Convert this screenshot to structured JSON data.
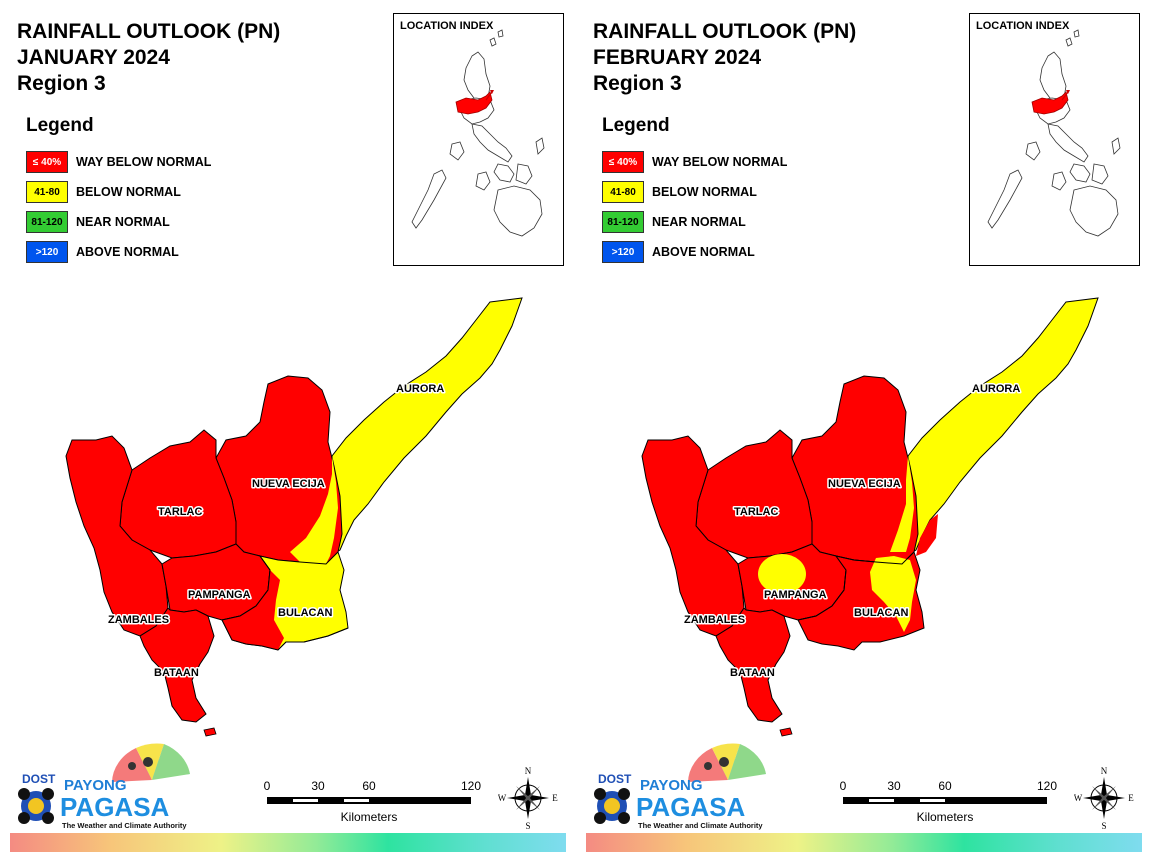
{
  "colors": {
    "way_below": "#ff0000",
    "below": "#ffff00",
    "near": "#33cc33",
    "above": "#0055ee"
  },
  "legend": {
    "title": "Legend",
    "items": [
      {
        "swatch": "≤ 40%",
        "label": "WAY BELOW NORMAL",
        "color": "#ff0000",
        "text_color": "#ffffff"
      },
      {
        "swatch": "41-80",
        "label": "BELOW NORMAL",
        "color": "#ffff00",
        "text_color": "#000000"
      },
      {
        "swatch": "81-120",
        "label": "NEAR NORMAL",
        "color": "#33cc33",
        "text_color": "#000000"
      },
      {
        "swatch": ">120",
        "label": "ABOVE NORMAL",
        "color": "#0055ee",
        "text_color": "#ffffff"
      }
    ]
  },
  "location_index_title": "LOCATION INDEX",
  "logo": {
    "dost": "DOST",
    "payong": "PAYONG",
    "pagasa": "PAGASA",
    "tagline": "The Weather and Climate Authority"
  },
  "scale": {
    "ticks": [
      "0",
      "30",
      "60",
      "120"
    ],
    "unit": "Kilometers"
  },
  "compass": {
    "n": "N",
    "s": "S",
    "e": "E",
    "w": "W"
  },
  "maps": [
    {
      "title_line1": "RAINFALL OUTLOOK (PN)",
      "title_line2": "JANUARY 2024",
      "title_line3": "Region 3",
      "provinces": {
        "aurora": "AURORA",
        "nueva_ecija": "NUEVA ECIJA",
        "tarlac": "TARLAC",
        "pampanga": "PAMPANGA",
        "zambales": "ZAMBALES",
        "bulacan": "BULACAN",
        "bataan": "BATAAN"
      }
    },
    {
      "title_line1": "RAINFALL OUTLOOK (PN)",
      "title_line2": "FEBRUARY 2024",
      "title_line3": "Region 3",
      "provinces": {
        "aurora": "AURORA",
        "nueva_ecija": "NUEVA ECIJA",
        "tarlac": "TARLAC",
        "pampanga": "PAMPANGA",
        "zambales": "ZAMBALES",
        "bulacan": "BULACAN",
        "bataan": "BATAAN"
      }
    }
  ]
}
